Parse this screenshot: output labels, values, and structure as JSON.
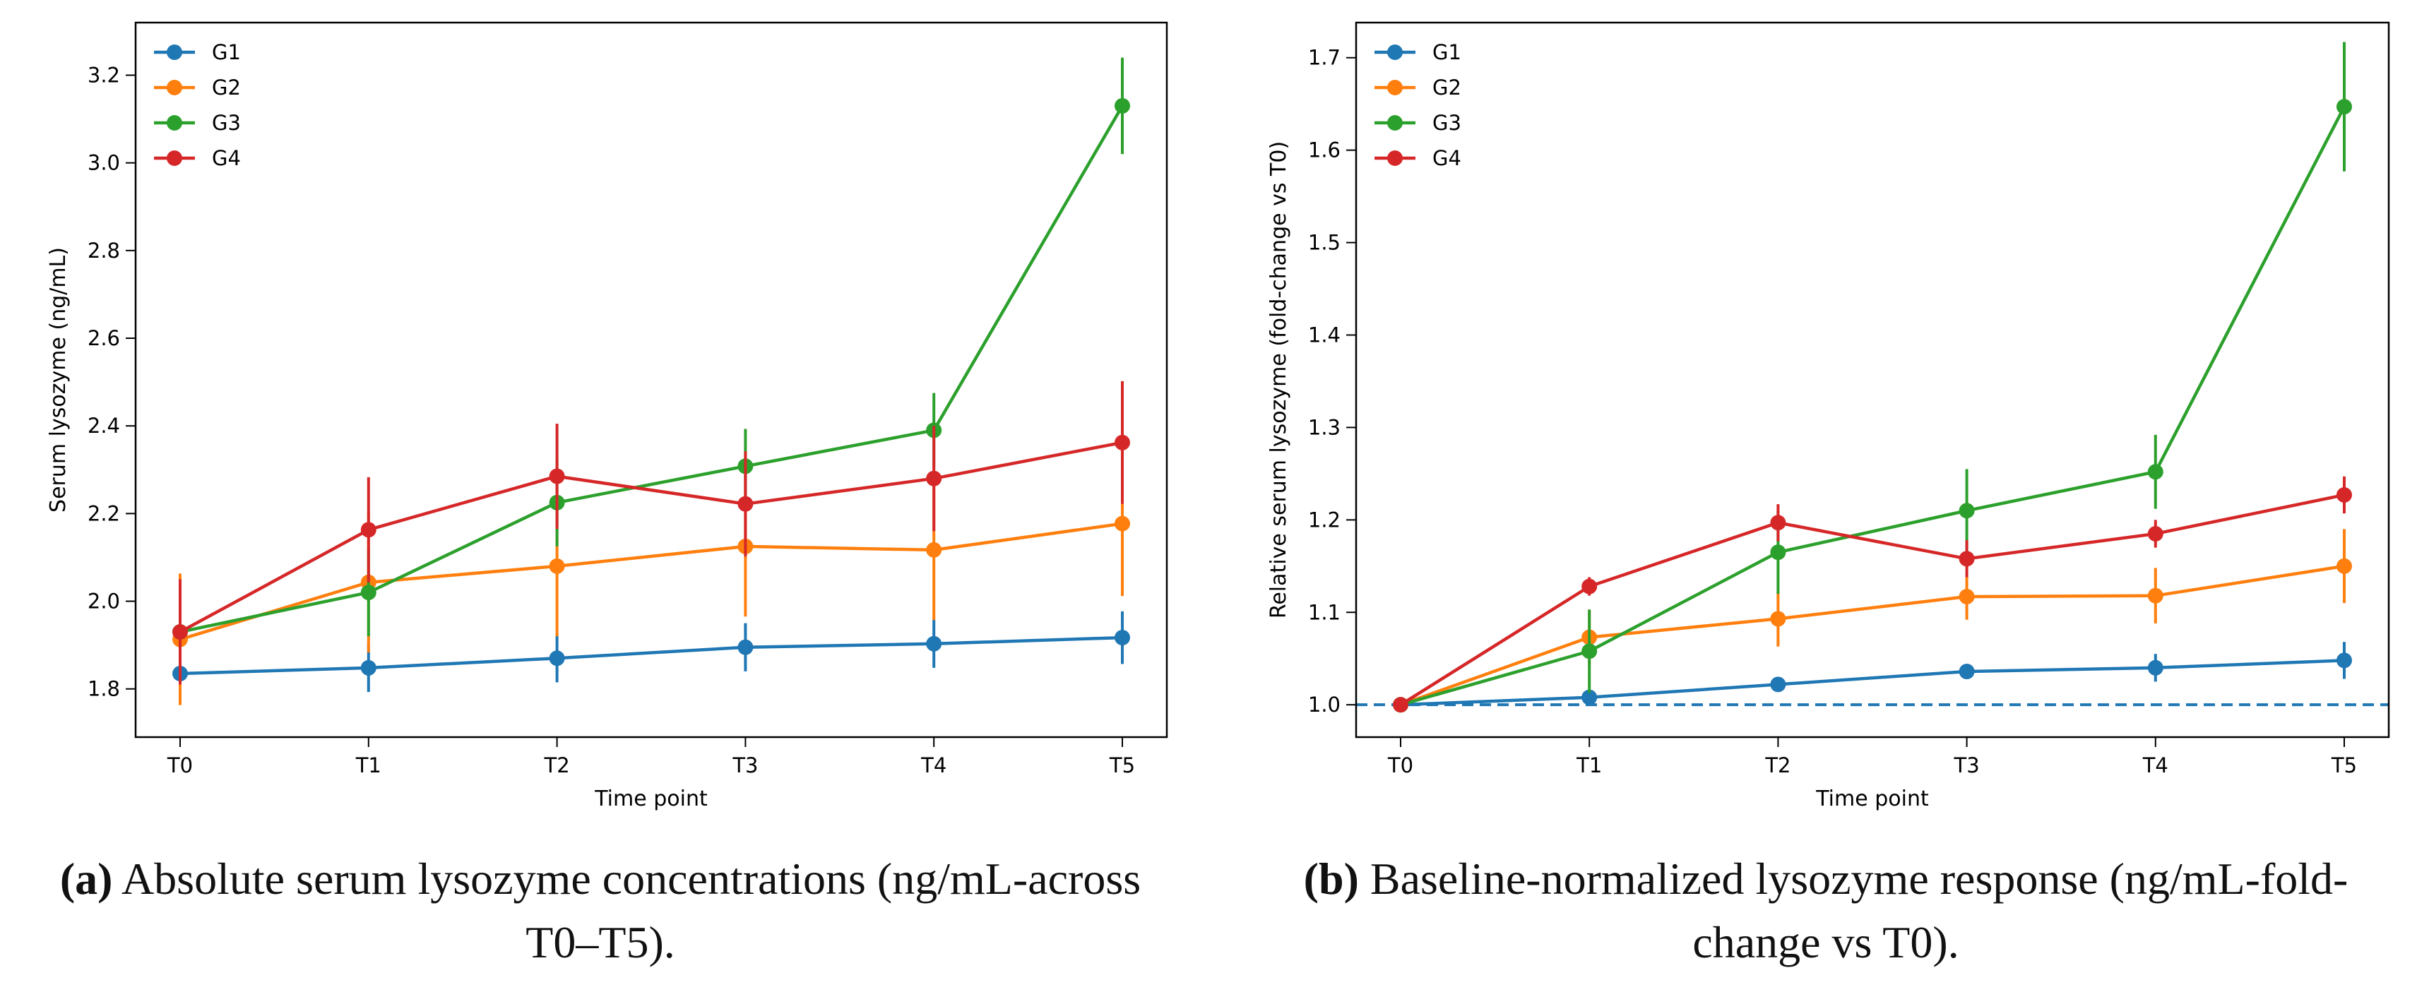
{
  "chart_data": [
    {
      "type": "line",
      "x": [
        "T0",
        "T1",
        "T2",
        "T3",
        "T4",
        "T5"
      ],
      "xlabel": "Time point",
      "ylabel": "Serum lysozyme (ng/mL)",
      "ylim": [
        1.69,
        3.32
      ],
      "yticks": [
        "1.8",
        "2.0",
        "2.2",
        "2.4",
        "2.6",
        "2.8",
        "3.0",
        "3.2"
      ],
      "legend_placement": "top-left",
      "grid": false,
      "series": [
        {
          "name": "G1",
          "color": "#1f77b4",
          "values": [
            1.835,
            1.848,
            1.87,
            1.895,
            1.903,
            1.917
          ],
          "err": [
            0.05,
            0.055,
            0.055,
            0.055,
            0.055,
            0.06
          ]
        },
        {
          "name": "G2",
          "color": "#ff7f0e",
          "values": [
            1.913,
            2.043,
            2.08,
            2.125,
            2.117,
            2.177
          ],
          "err": [
            0.15,
            0.16,
            0.16,
            0.16,
            0.16,
            0.165
          ]
        },
        {
          "name": "G3",
          "color": "#2ca02c",
          "values": [
            1.93,
            2.02,
            2.225,
            2.308,
            2.39,
            3.13
          ],
          "err": [
            0.1,
            0.1,
            0.1,
            0.085,
            0.085,
            0.11
          ]
        },
        {
          "name": "G4",
          "color": "#d62728",
          "values": [
            1.93,
            2.163,
            2.285,
            2.222,
            2.28,
            2.362
          ],
          "err": [
            0.12,
            0.12,
            0.12,
            0.12,
            0.12,
            0.14
          ]
        }
      ]
    },
    {
      "type": "line",
      "x": [
        "T0",
        "T1",
        "T2",
        "T3",
        "T4",
        "T5"
      ],
      "xlabel": "Time point",
      "ylabel": "Relative serum lysozyme (fold-change vs T0)",
      "ylim": [
        0.965,
        1.738
      ],
      "yticks": [
        "1.0",
        "1.1",
        "1.2",
        "1.3",
        "1.4",
        "1.5",
        "1.6",
        "1.7"
      ],
      "reference_line": 1.0,
      "legend_placement": "top-left",
      "grid": false,
      "series": [
        {
          "name": "G1",
          "color": "#1f77b4",
          "values": [
            1.0,
            1.008,
            1.022,
            1.036,
            1.04,
            1.048
          ],
          "err": [
            0.0,
            0.008,
            0.008,
            0.008,
            0.015,
            0.02
          ]
        },
        {
          "name": "G2",
          "color": "#ff7f0e",
          "values": [
            1.0,
            1.073,
            1.093,
            1.117,
            1.118,
            1.15
          ],
          "err": [
            0.0,
            0.03,
            0.03,
            0.025,
            0.03,
            0.04
          ]
        },
        {
          "name": "G3",
          "color": "#2ca02c",
          "values": [
            1.0,
            1.058,
            1.165,
            1.21,
            1.252,
            1.647
          ],
          "err": [
            0.0,
            0.045,
            0.045,
            0.045,
            0.04,
            0.07
          ]
        },
        {
          "name": "G4",
          "color": "#d62728",
          "values": [
            1.0,
            1.128,
            1.197,
            1.158,
            1.185,
            1.227
          ],
          "err": [
            0.0,
            0.01,
            0.02,
            0.02,
            0.015,
            0.02
          ]
        }
      ]
    }
  ],
  "captions": {
    "a": {
      "label": "(a)",
      "text": " Absolute serum lysozyme concentrations (ng/mL-across T0–T5)."
    },
    "b": {
      "label": "(b)",
      "text": " Baseline-normalized lysozyme response (ng/mL-fold-change vs T0)."
    }
  }
}
